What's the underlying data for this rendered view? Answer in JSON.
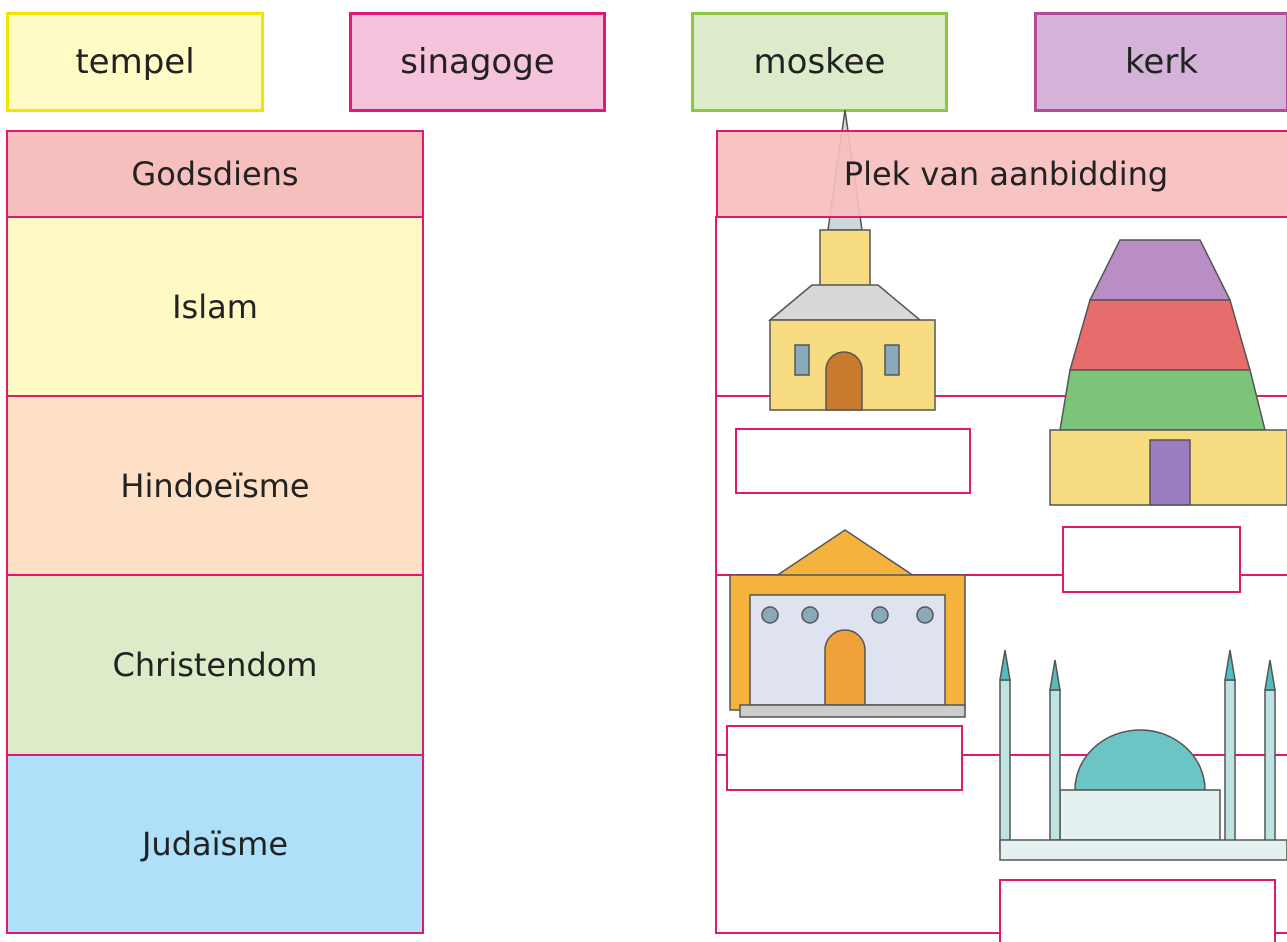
{
  "cards": [
    "tempel",
    "sinagoge",
    "moskee",
    "kerk"
  ],
  "table_left": {
    "header": "Godsdiens",
    "rows": [
      "Islam",
      "Hindoeïsme",
      "Christendom",
      "Judaïsme"
    ]
  },
  "table_right": {
    "header": "Plek van aanbidding"
  }
}
